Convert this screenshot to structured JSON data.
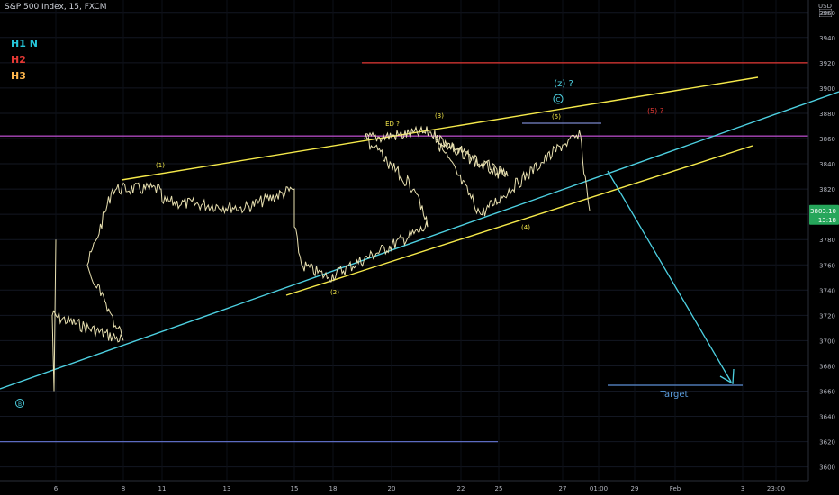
{
  "header": {
    "symbol_line": "S&P 500 Index, 15, FXCM"
  },
  "legend": [
    {
      "label": "H1 N",
      "color": "#26c6da"
    },
    {
      "label": "H2",
      "color": "#e53935"
    },
    {
      "label": "H3",
      "color": "#ffb74d"
    }
  ],
  "price_axis": {
    "currency": "USD"
  },
  "colors": {
    "background": "#000000",
    "price": "#e8e0b0",
    "yellow": "#f5e94a",
    "cyan": "#4dd0e1",
    "purple": "#ab47bc",
    "red": "#e53935",
    "blue": "#5c6bc0",
    "last_price": "#26a65b"
  },
  "chart_data": {
    "type": "line",
    "title": "S&P 500 Index, 15, FXCM",
    "ylim": [
      3590,
      3990
    ],
    "y_ticks": [
      3600,
      3620,
      3640,
      3660,
      3680,
      3700,
      3720,
      3740,
      3760,
      3780,
      3800,
      3820,
      3840,
      3860,
      3880,
      3900,
      3920,
      3940,
      3960
    ],
    "x_ticks": [
      "6",
      "8",
      "11",
      "13",
      "15",
      "18",
      "20",
      "22",
      "25",
      "27",
      "01:00",
      "29",
      "Feb",
      "3",
      "23:00"
    ],
    "last_price": {
      "value": "3803.10",
      "countdown": "13:18"
    },
    "price_path": [
      [
        "6",
        3780
      ],
      [
        "6",
        3660
      ],
      [
        "6",
        3720
      ],
      [
        "8",
        3700
      ],
      [
        "8",
        3760
      ],
      [
        "8",
        3780
      ],
      [
        "8",
        3820
      ],
      [
        "11",
        3820
      ],
      [
        "11",
        3810
      ],
      [
        "13",
        3805
      ],
      [
        "15",
        3820
      ],
      [
        "15",
        3790
      ],
      [
        "18",
        3760
      ],
      [
        "18",
        3750
      ],
      [
        "20",
        3790
      ],
      [
        "20",
        3820
      ],
      [
        "20",
        3860
      ],
      [
        "22",
        3865
      ],
      [
        "22",
        3840
      ],
      [
        "25",
        3830
      ],
      [
        "25",
        3860
      ],
      [
        "25",
        3800
      ],
      [
        "27",
        3855
      ],
      [
        "27",
        3862
      ],
      [
        "01:00",
        3845
      ],
      [
        "01:00",
        3803
      ]
    ],
    "levels": [
      {
        "name": "red-level",
        "value": 3920,
        "color": "#e53935"
      },
      {
        "name": "purple-level",
        "value": 3862,
        "color": "#ab47bc"
      },
      {
        "name": "blue-level",
        "value": 3620,
        "color": "#5c6bc0"
      }
    ],
    "wave_labels": {
      "w1": "(1)",
      "w2": "(2)",
      "w3": "(3)",
      "w4": "(4)",
      "w5": "(5)",
      "ed": "ED ?",
      "z": "(z) ?",
      "c": "C",
      "b": "B",
      "w5q": "(5) ?"
    },
    "target_label": "Target"
  }
}
